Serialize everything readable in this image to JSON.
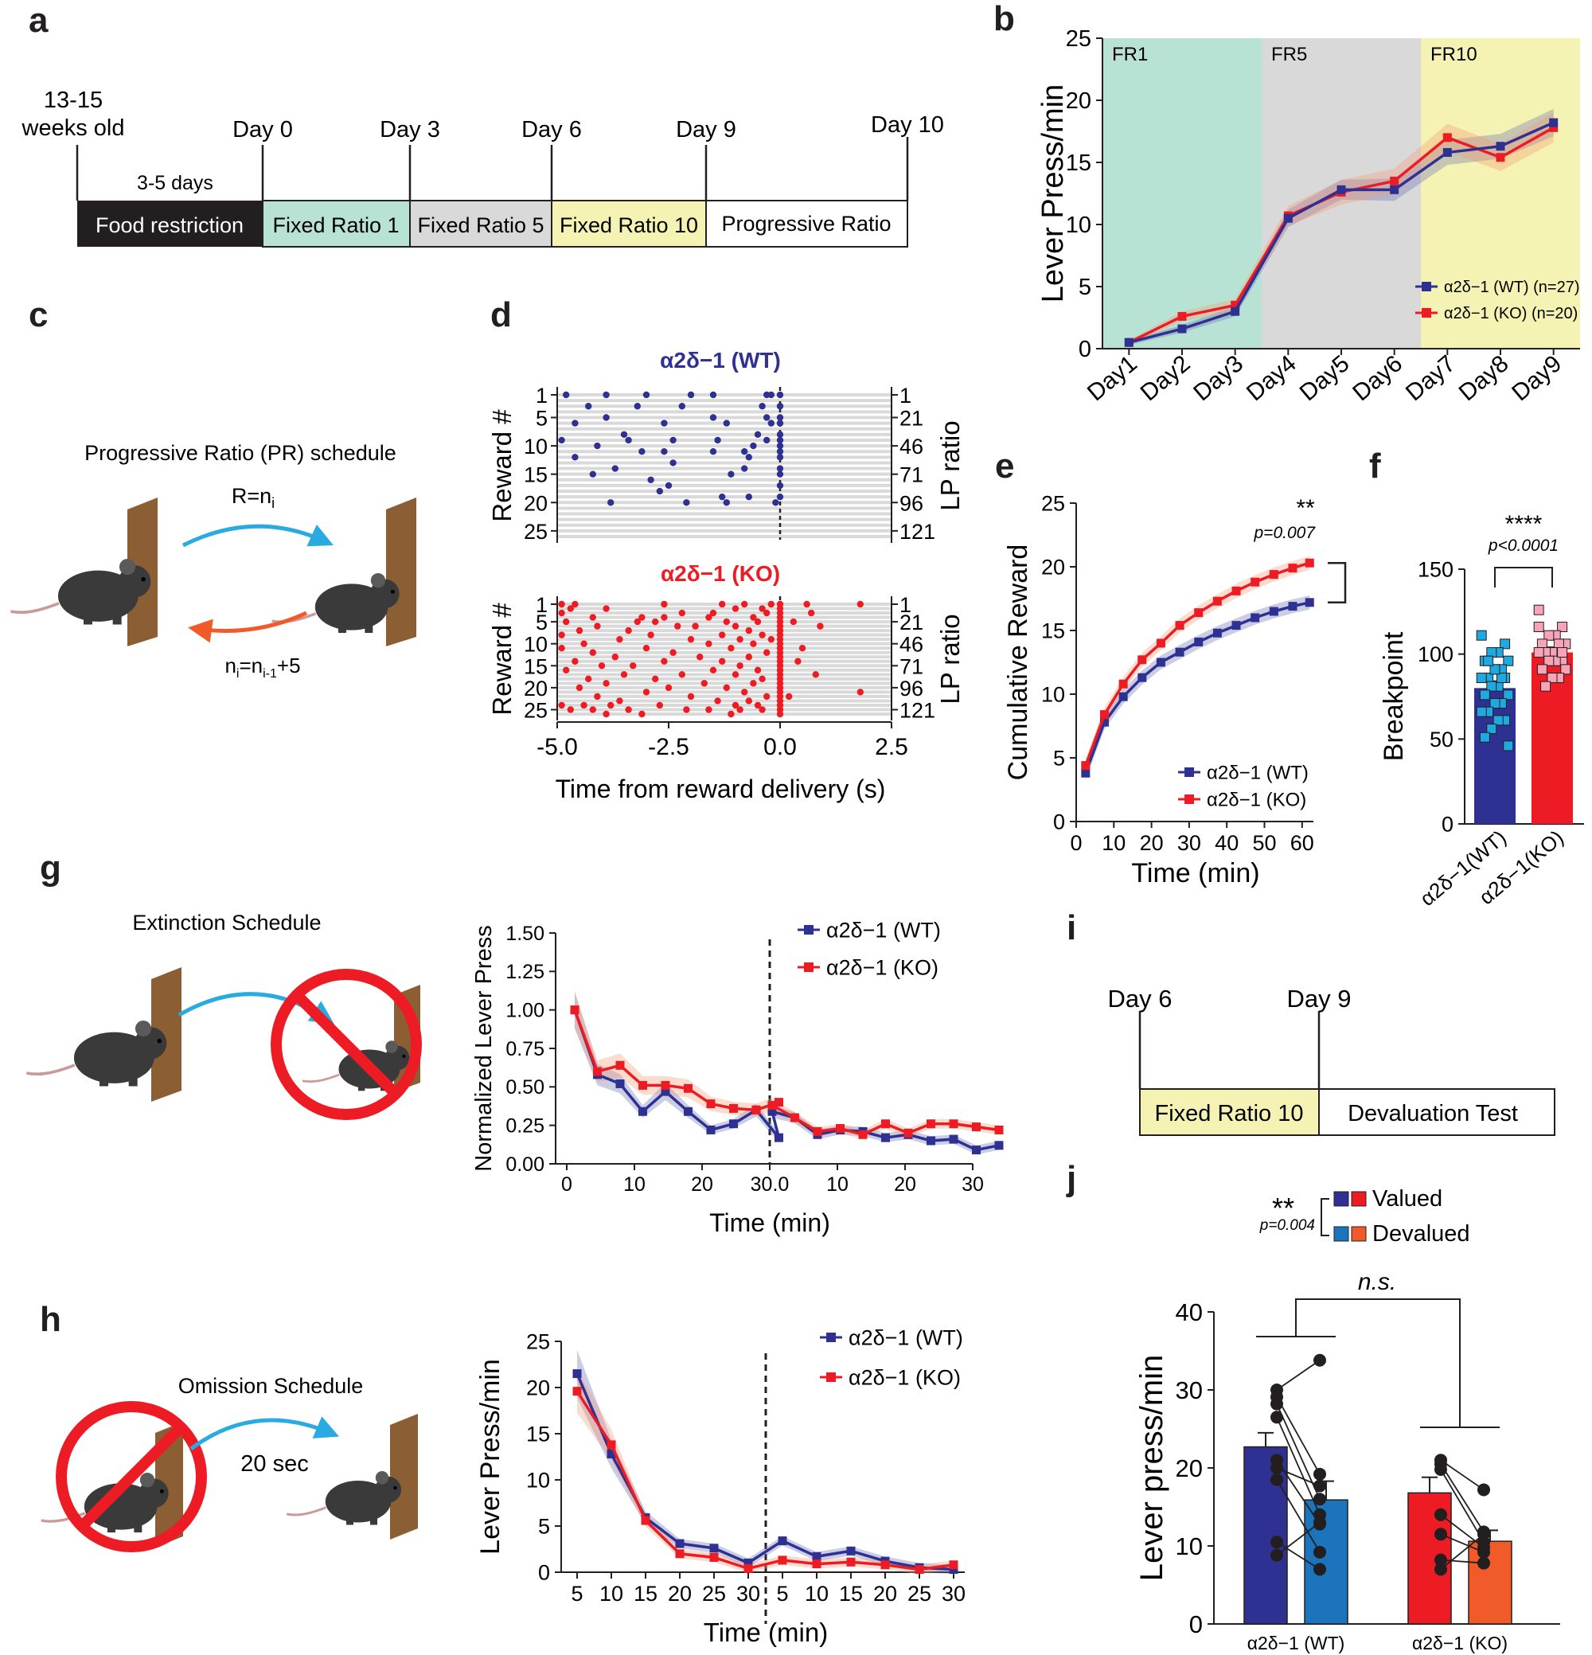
{
  "colors": {
    "wt": "#2e3192",
    "ko": "#ed1c24",
    "wt_light": "#1c75bc",
    "ko_light": "#f15a29",
    "fr1": "#b8e2d3",
    "fr5": "#d9d9d9",
    "fr10": "#f4f3b3",
    "blue_arrow": "#29abe2",
    "orange_arrow": "#f15a29",
    "tan": "#8b5e34",
    "pink": "#f7a3b8",
    "lightblue": "#1fa9e1"
  },
  "panel_labels": {
    "a": "a",
    "b": "b",
    "c": "c",
    "d": "d",
    "e": "e",
    "f": "f",
    "g": "g",
    "h": "h",
    "i": "i",
    "j": "j"
  },
  "panel_a": {
    "start_label_1": "13-15",
    "start_label_2": "weeks old",
    "duration_label": "3-5 days",
    "day_labels": [
      "Day 0",
      "Day 3",
      "Day 6",
      "Day 9",
      "Day 10"
    ],
    "phases": [
      "Food restriction",
      "Fixed Ratio 1",
      "Fixed Ratio 5",
      "Fixed Ratio 10",
      "Progressive Ratio"
    ]
  },
  "panel_c": {
    "title": "Progressive Ratio (PR) schedule",
    "rule_top": "R=n",
    "rule_top_sub": "i",
    "rule_bottom_a": "n",
    "rule_bottom_sub1": "i",
    "rule_bottom_b": "=n",
    "rule_bottom_sub2": "i-1",
    "rule_bottom_c": "+5"
  },
  "panel_g": {
    "title": "Extinction Schedule"
  },
  "panel_h": {
    "title": "Omission Schedule",
    "delay": "20 sec"
  },
  "panel_i": {
    "day_labels": [
      "Day 6",
      "Day 9"
    ],
    "phases": [
      "Fixed Ratio 10",
      "Devaluation Test"
    ]
  },
  "chart_data": [
    {
      "id": "b",
      "type": "line",
      "title": "",
      "xlabel": "",
      "ylabel": "Lever Press/min",
      "categories": [
        "Day1",
        "Day2",
        "Day3",
        "Day4",
        "Day5",
        "Day6",
        "Day7",
        "Day8",
        "Day9"
      ],
      "ylim": [
        0,
        25
      ],
      "yticks": [
        0,
        5,
        10,
        15,
        20,
        25
      ],
      "phase_labels": [
        "FR1",
        "FR5",
        "FR10"
      ],
      "series": [
        {
          "name": "α2δ−1 (WT) (n=27)",
          "values": [
            0.5,
            1.6,
            3.0,
            10.5,
            12.8,
            12.8,
            15.8,
            16.3,
            18.2
          ],
          "sem": [
            0.2,
            0.3,
            0.4,
            0.7,
            0.8,
            0.9,
            1.0,
            1.0,
            1.1
          ]
        },
        {
          "name": "α2δ−1 (KO) (n=20)",
          "values": [
            0.5,
            2.6,
            3.5,
            10.7,
            12.6,
            13.5,
            17.0,
            15.4,
            17.8
          ],
          "sem": [
            0.2,
            0.4,
            0.5,
            0.8,
            1.0,
            1.0,
            1.1,
            1.1,
            1.2
          ]
        }
      ]
    },
    {
      "id": "d",
      "type": "scatter",
      "xlabel": "Time from reward delivery (s)",
      "ylabel": "Reward #",
      "ylabel_right": "LP ratio",
      "xlim": [
        -5.0,
        2.5
      ],
      "xticks": [
        "-5.0",
        "-2.5",
        "0.0",
        "2.5"
      ],
      "yticks": [
        "1",
        "5",
        "10",
        "15",
        "20",
        "25"
      ],
      "yticks_right": [
        "1",
        "21",
        "46",
        "71",
        "96",
        "121"
      ],
      "wt_title": "α2δ−1 (WT)",
      "ko_title": "α2δ−1 (KO)",
      "wt_points": [
        [
          -4.8,
          1
        ],
        [
          -3.9,
          1
        ],
        [
          -3.0,
          1
        ],
        [
          -2.0,
          1
        ],
        [
          -1.5,
          1
        ],
        [
          -0.3,
          1
        ],
        [
          -0.2,
          1
        ],
        [
          0,
          1
        ],
        [
          -4.3,
          3
        ],
        [
          -3.2,
          3
        ],
        [
          -2.2,
          3
        ],
        [
          -0.4,
          3
        ],
        [
          0,
          3
        ],
        [
          -3.9,
          5
        ],
        [
          -1.5,
          5
        ],
        [
          -0.3,
          5
        ],
        [
          0,
          5
        ],
        [
          -4.6,
          6
        ],
        [
          -2.6,
          6
        ],
        [
          -1.2,
          6
        ],
        [
          -0.2,
          6
        ],
        [
          0,
          6
        ],
        [
          -3.5,
          8
        ],
        [
          -0.5,
          8
        ],
        [
          0,
          8
        ],
        [
          -4.9,
          9
        ],
        [
          -3.4,
          9
        ],
        [
          -2.4,
          9
        ],
        [
          -1.4,
          9
        ],
        [
          -0.3,
          9
        ],
        [
          0,
          9
        ],
        [
          -4.1,
          10
        ],
        [
          -0.6,
          10
        ],
        [
          0,
          10
        ],
        [
          -3.1,
          11
        ],
        [
          -2.6,
          11
        ],
        [
          -1.5,
          11
        ],
        [
          -0.8,
          11
        ],
        [
          0,
          11
        ],
        [
          -4.6,
          12
        ],
        [
          -0.7,
          12
        ],
        [
          0,
          12
        ],
        [
          -2.4,
          13
        ],
        [
          -3.7,
          14
        ],
        [
          -0.8,
          14
        ],
        [
          0,
          14
        ],
        [
          -4.2,
          15
        ],
        [
          -1.1,
          15
        ],
        [
          0,
          15
        ],
        [
          -2.9,
          16
        ],
        [
          -2.5,
          17
        ],
        [
          0,
          17
        ],
        [
          -2.7,
          18
        ],
        [
          -0.7,
          19
        ],
        [
          -1.3,
          19
        ],
        [
          0,
          19
        ],
        [
          -3.8,
          20
        ],
        [
          -2.1,
          20
        ],
        [
          -1.2,
          20
        ],
        [
          -0.1,
          20
        ]
      ],
      "ko_points": [
        [
          -4.9,
          1
        ],
        [
          -4.6,
          1
        ],
        [
          -2.6,
          1
        ],
        [
          -1.3,
          1
        ],
        [
          -0.8,
          1
        ],
        [
          -0.2,
          1
        ],
        [
          0,
          1
        ],
        [
          0.6,
          1
        ],
        [
          1.8,
          1
        ],
        [
          -4.7,
          2
        ],
        [
          -3.9,
          2
        ],
        [
          -1.0,
          2
        ],
        [
          -0.4,
          2
        ],
        [
          0,
          2
        ],
        [
          -4.9,
          3
        ],
        [
          -2.2,
          3
        ],
        [
          -1.5,
          3
        ],
        [
          -0.3,
          3
        ],
        [
          0,
          3
        ],
        [
          0.7,
          3
        ],
        [
          -4.2,
          4
        ],
        [
          -3.1,
          4
        ],
        [
          -2.6,
          4
        ],
        [
          -1.6,
          4
        ],
        [
          -0.6,
          4
        ],
        [
          0,
          4
        ],
        [
          -4.8,
          5
        ],
        [
          -3.2,
          5
        ],
        [
          -2.8,
          5
        ],
        [
          -1.2,
          5
        ],
        [
          -0.5,
          5
        ],
        [
          0,
          5
        ],
        [
          0.3,
          5
        ],
        [
          -4.1,
          6
        ],
        [
          -2.3,
          6
        ],
        [
          -1.9,
          6
        ],
        [
          -1.0,
          6
        ],
        [
          0,
          6
        ],
        [
          0.9,
          6
        ],
        [
          -4.5,
          7
        ],
        [
          -3.4,
          7
        ],
        [
          -0.7,
          7
        ],
        [
          0,
          7
        ],
        [
          -4.9,
          8
        ],
        [
          -2.9,
          8
        ],
        [
          -1.3,
          8
        ],
        [
          -0.4,
          8
        ],
        [
          0,
          8
        ],
        [
          -3.6,
          9
        ],
        [
          -2.0,
          9
        ],
        [
          -0.9,
          9
        ],
        [
          -0.2,
          9
        ],
        [
          0,
          9
        ],
        [
          -4.4,
          10
        ],
        [
          -1.6,
          10
        ],
        [
          -0.6,
          10
        ],
        [
          0,
          10
        ],
        [
          -4.9,
          11
        ],
        [
          -3.0,
          11
        ],
        [
          -1.1,
          11
        ],
        [
          0,
          11
        ],
        [
          0.5,
          11
        ],
        [
          -4.2,
          12
        ],
        [
          -2.4,
          12
        ],
        [
          -0.3,
          12
        ],
        [
          0,
          12
        ],
        [
          -3.7,
          13
        ],
        [
          -1.8,
          13
        ],
        [
          -0.7,
          13
        ],
        [
          0,
          13
        ],
        [
          -4.6,
          14
        ],
        [
          -2.6,
          14
        ],
        [
          -1.3,
          14
        ],
        [
          0,
          14
        ],
        [
          0.4,
          14
        ],
        [
          -4.0,
          15
        ],
        [
          -3.3,
          15
        ],
        [
          -0.9,
          15
        ],
        [
          0,
          15
        ],
        [
          -4.8,
          16
        ],
        [
          -1.5,
          16
        ],
        [
          -0.5,
          16
        ],
        [
          0,
          16
        ],
        [
          -3.5,
          17
        ],
        [
          -2.2,
          17
        ],
        [
          -1.0,
          17
        ],
        [
          0,
          17
        ],
        [
          0.8,
          17
        ],
        [
          -4.3,
          18
        ],
        [
          -2.8,
          18
        ],
        [
          -0.4,
          18
        ],
        [
          0,
          18
        ],
        [
          -3.9,
          19
        ],
        [
          -1.7,
          19
        ],
        [
          -0.6,
          19
        ],
        [
          0,
          19
        ],
        [
          -4.5,
          20
        ],
        [
          -2.5,
          20
        ],
        [
          -1.2,
          20
        ],
        [
          0,
          20
        ],
        [
          -3.0,
          21
        ],
        [
          -0.8,
          21
        ],
        [
          0,
          21
        ],
        [
          -4.1,
          22
        ],
        [
          -2.0,
          22
        ],
        [
          -0.3,
          22
        ],
        [
          0,
          22
        ],
        [
          0.2,
          22
        ],
        [
          -3.6,
          23
        ],
        [
          -1.4,
          23
        ],
        [
          -0.7,
          23
        ],
        [
          0,
          23
        ],
        [
          1.8,
          21
        ],
        [
          -4.9,
          24
        ],
        [
          -4.4,
          24
        ],
        [
          -3.8,
          24
        ],
        [
          -2.7,
          24
        ],
        [
          -1.0,
          24
        ],
        [
          -0.5,
          24
        ],
        [
          0,
          24
        ],
        [
          -4.7,
          25
        ],
        [
          -4.2,
          25
        ],
        [
          -3.4,
          25
        ],
        [
          -2.1,
          25
        ],
        [
          -1.6,
          25
        ],
        [
          -0.9,
          25
        ],
        [
          -0.4,
          25
        ],
        [
          0,
          25
        ],
        [
          -3.9,
          26
        ],
        [
          -3.1,
          26
        ],
        [
          -1.1,
          26
        ],
        [
          0,
          26
        ]
      ]
    },
    {
      "id": "e",
      "type": "line",
      "xlabel": "Time (min)",
      "ylabel": "Cumulative Reward",
      "xlim": [
        0,
        63
      ],
      "xticks": [
        0,
        10,
        20,
        30,
        40,
        50,
        60
      ],
      "ylim": [
        0,
        25
      ],
      "yticks": [
        0,
        5,
        10,
        15,
        20,
        25
      ],
      "significance": "**",
      "p_value": "p=0.007",
      "x": [
        2.5,
        7.5,
        12.5,
        17.5,
        22.5,
        27.5,
        32.5,
        37.5,
        42.5,
        47.5,
        52.5,
        57.5,
        62
      ],
      "series": [
        {
          "name": "α2δ−1 (WT)",
          "values": [
            3.8,
            7.8,
            9.8,
            11.3,
            12.5,
            13.3,
            14.1,
            14.8,
            15.4,
            16.0,
            16.5,
            16.9,
            17.2
          ]
        },
        {
          "name": "α2δ−1 (KO)",
          "values": [
            4.4,
            8.4,
            10.8,
            12.7,
            14.0,
            15.4,
            16.4,
            17.3,
            18.1,
            18.8,
            19.4,
            19.9,
            20.3
          ]
        }
      ]
    },
    {
      "id": "f",
      "type": "bar",
      "ylabel": "Breakpoint",
      "ylim": [
        0,
        150
      ],
      "yticks": [
        0,
        50,
        100,
        150
      ],
      "categories": [
        "α2δ−1(WT)",
        "α2δ−1(KO)"
      ],
      "values": [
        80,
        101
      ],
      "sem": [
        4,
        3
      ],
      "significance": "****",
      "p_value": "p<0.0001",
      "wt_points": [
        111,
        106,
        101,
        101,
        96,
        96,
        91,
        91,
        86,
        86,
        86,
        81,
        81,
        76,
        76,
        71,
        71,
        66,
        66,
        61,
        61,
        56,
        51,
        46,
        86,
        91,
        96
      ],
      "ko_points": [
        126,
        116,
        111,
        111,
        106,
        106,
        106,
        101,
        101,
        101,
        96,
        96,
        96,
        91,
        91,
        86,
        86,
        81,
        116,
        101
      ]
    },
    {
      "id": "g",
      "type": "line",
      "xlabel": "Time (min)",
      "ylabel": "Normalized Lever Press",
      "ylim": [
        0,
        1.5
      ],
      "yticks": [
        "0.00",
        "0.25",
        "0.50",
        "0.75",
        "1.00",
        "1.25",
        "1.50"
      ],
      "xticks": [
        "0",
        "10",
        "20",
        "30.0",
        "10",
        "20",
        "30"
      ],
      "series": [
        {
          "name": "α2δ−1 (WT)",
          "values": [
            1.0,
            0.58,
            0.52,
            0.34,
            0.47,
            0.34,
            0.22,
            0.26,
            0.35,
            0.17,
            0.34,
            0.3,
            0.19,
            0.22,
            0.21,
            0.17,
            0.19,
            0.15,
            0.16,
            0.09,
            0.12
          ]
        },
        {
          "name": "α2δ−1 (KO)",
          "values": [
            1.0,
            0.6,
            0.64,
            0.51,
            0.51,
            0.49,
            0.39,
            0.36,
            0.35,
            0.4,
            0.38,
            0.3,
            0.21,
            0.23,
            0.19,
            0.26,
            0.2,
            0.26,
            0.26,
            0.24,
            0.22
          ]
        }
      ]
    },
    {
      "id": "h",
      "type": "line",
      "xlabel": "Time (min)",
      "ylabel": "Lever Press/min",
      "ylim": [
        0,
        25
      ],
      "yticks": [
        0,
        5,
        10,
        15,
        20,
        25
      ],
      "xticks": [
        "5",
        "10",
        "15",
        "20",
        "25",
        "30",
        "5",
        "10",
        "15",
        "20",
        "25",
        "30"
      ],
      "series": [
        {
          "name": "α2δ−1 (WT)",
          "values": [
            21.5,
            12.8,
            5.9,
            3.1,
            2.6,
            1.0,
            3.4,
            1.7,
            2.3,
            1.2,
            0.5,
            0.3
          ]
        },
        {
          "name": "α2δ−1 (KO)",
          "values": [
            19.6,
            13.8,
            5.6,
            2.0,
            1.6,
            0.4,
            1.3,
            0.9,
            1.1,
            0.8,
            0.3,
            0.8
          ]
        }
      ]
    },
    {
      "id": "j",
      "type": "bar",
      "ylabel": "Lever press/min",
      "ylim": [
        0,
        40
      ],
      "yticks": [
        0,
        10,
        20,
        30,
        40
      ],
      "categories": [
        "α2δ−1 (WT)",
        "α2δ−1 (KO)"
      ],
      "legend": [
        "Valued",
        "Devalued"
      ],
      "significance": "**",
      "p_value": "p=0.004",
      "ns_label": "n.s.",
      "values": [
        [
          22.7,
          15.9
        ],
        [
          16.8,
          10.6
        ]
      ],
      "sem": [
        [
          1.8,
          2.4
        ],
        [
          2.0,
          1.4
        ]
      ],
      "pairs": [
        [
          [
            [
              30.0,
              33.8
            ],
            [
              29.1,
              19.2
            ],
            [
              28.2,
              16.0
            ],
            [
              26.5,
              14.0
            ],
            [
              21.0,
              12.8
            ],
            [
              20.0,
              17.7
            ],
            [
              18.5,
              9.2
            ],
            [
              10.5,
              7.0
            ],
            [
              8.8,
              13.0
            ]
          ]
        ],
        [
          [
            [
              21.0,
              17.2
            ],
            [
              20.5,
              11.8
            ],
            [
              19.8,
              10.5
            ],
            [
              14.0,
              9.8
            ],
            [
              11.5,
              9.2
            ],
            [
              8.2,
              7.8
            ],
            [
              7.0,
              11.5
            ]
          ]
        ]
      ]
    }
  ]
}
